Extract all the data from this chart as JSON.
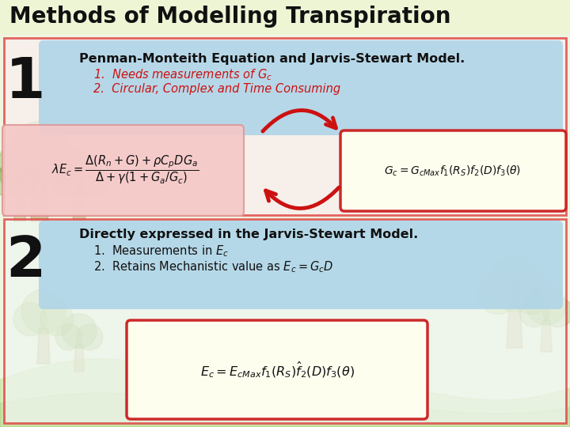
{
  "title": "Methods of Modelling Transpiration",
  "bg_color": "#f0f5e0",
  "title_color": "#000000",
  "section_border": "#dd3333",
  "blue_box_color": "#aed4e8",
  "pink_box_color": "#f5c8c8",
  "yellow_box_color": "#fffff0",
  "yellow_box_border": "#cc2222",
  "section1_title": "Penman-Monteith Equation and Jarvis-Stewart Model.",
  "section1_item1": "1.  Needs measurements of $G_c$",
  "section1_item2": "2.  Circular, Complex and Time Consuming",
  "section2_title": "Directly expressed in the Jarvis-Stewart Model.",
  "section2_item1": "1.  Measurements in $E_c$",
  "section2_item2": "2.  Retains Mechanistic value as $E_c = G_cD$",
  "eq1": "$\\lambda E_c = \\dfrac{\\Delta(R_n + G) + \\rho C_p D G_a}{\\Delta + \\gamma(1 + G_a / G_c)}$",
  "eq2": "$G_c = G_{cMax} f_1(R_S) f_2(D) f_3(\\theta)$",
  "eq3": "$E_c = E_{cMax} f_1(R_S) \\hat{f}_2(D) f_3(\\theta)$",
  "num1": "1",
  "num2": "2",
  "red_color": "#cc1111",
  "tree_color1": "#88b848",
  "tree_color2": "#70a030",
  "grass_color": "#b0d878"
}
